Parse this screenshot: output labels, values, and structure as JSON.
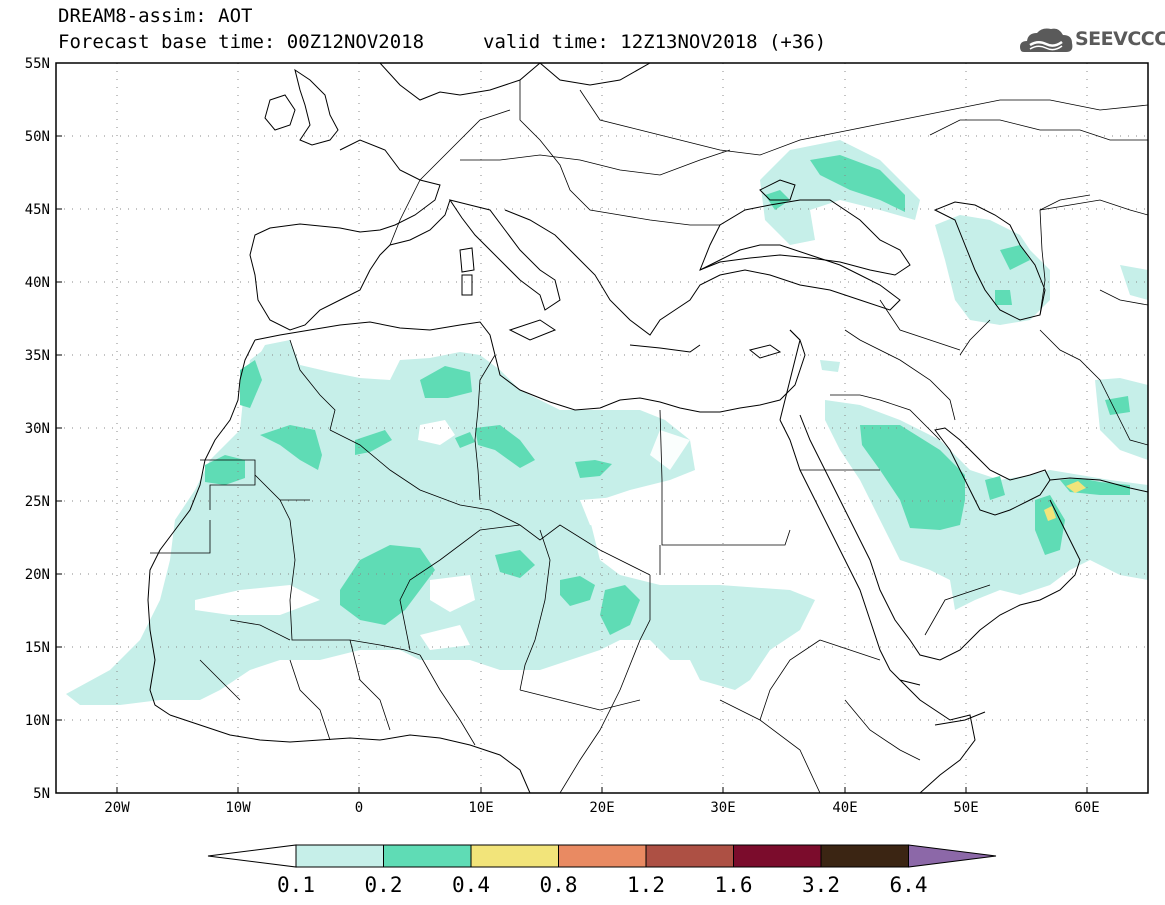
{
  "header": {
    "title_line1": "DREAM8-assim: AOT",
    "title_line2": "Forecast base time: 00Z12NOV2018",
    "valid_time": "valid time: 12Z13NOV2018 (+36)",
    "logo_text": "SEEVCCC",
    "logo_icon": "cloud-logo-icon"
  },
  "map": {
    "lat_labels": [
      "55N",
      "50N",
      "45N",
      "40N",
      "35N",
      "30N",
      "25N",
      "20N",
      "15N",
      "10N",
      "5N"
    ],
    "lon_labels": [
      "20W",
      "10W",
      "0",
      "10E",
      "20E",
      "30E",
      "40E",
      "50E",
      "60E"
    ],
    "lat_range": [
      5,
      55
    ],
    "lon_range": [
      -25,
      65
    ],
    "grid": "dotted",
    "colors": {
      "level_0_1": "#c6efe9",
      "level_0_2": "#5fdcb5",
      "level_0_4": "#f2e47a",
      "level_0_8": "#e98a62",
      "level_1_2": "#ad5044",
      "level_1_6": "#7b0c2c",
      "level_3_2": "#3b2513",
      "level_6_4": "#8c68a8"
    }
  },
  "colorbar": {
    "labels": [
      "0.1",
      "0.2",
      "0.4",
      "0.8",
      "1.2",
      "1.6",
      "3.2",
      "6.4"
    ]
  }
}
